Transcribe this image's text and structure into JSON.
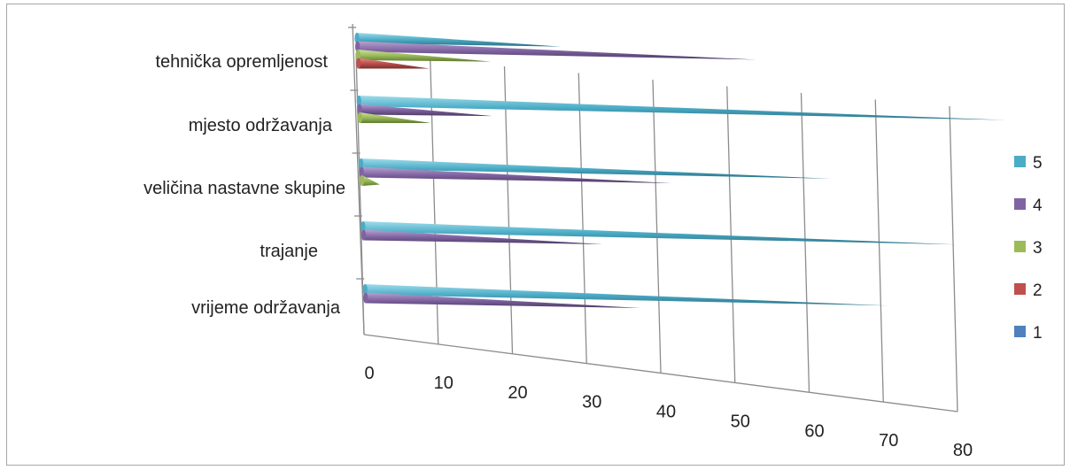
{
  "chart_data": {
    "type": "bar",
    "orientation": "horizontal",
    "style": "3d-cone",
    "categories": [
      "tehnička opremljenost",
      "mjesto održavanja",
      "veličina nastavne skupine",
      "trajanje",
      "vrijeme održavanja"
    ],
    "series": [
      {
        "name": "1",
        "color": "#4f81bd",
        "values": [
          0,
          0,
          0,
          0,
          0
        ]
      },
      {
        "name": "2",
        "color": "#c0504d",
        "values": [
          8,
          0,
          0,
          0,
          0
        ]
      },
      {
        "name": "3",
        "color": "#9bbb59",
        "values": [
          15,
          8,
          2,
          0,
          0
        ]
      },
      {
        "name": "4",
        "color": "#8064a2",
        "values": [
          45,
          15,
          35,
          27,
          31
        ]
      },
      {
        "name": "5",
        "color": "#4bacc6",
        "values": [
          23,
          73,
          53,
          67,
          59
        ]
      }
    ],
    "x_ticks": [
      "0",
      "10",
      "20",
      "30",
      "40",
      "50",
      "60",
      "70",
      "80"
    ],
    "xlim": [
      0,
      80
    ],
    "legend_position": "right",
    "grid": true
  }
}
